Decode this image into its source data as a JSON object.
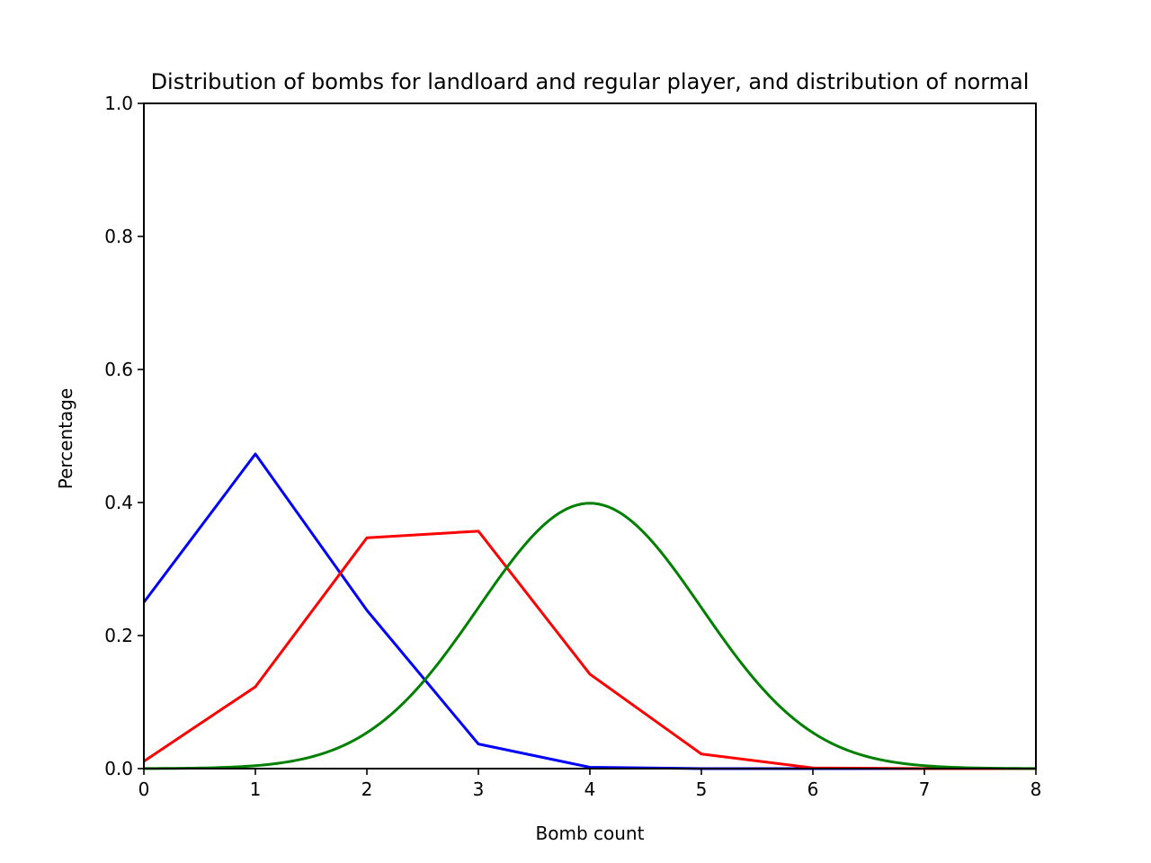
{
  "chart_data": {
    "type": "line",
    "title": "Distribution of bombs for landloard and regular player, and distribution of normal",
    "xlabel": "Bomb count",
    "ylabel": "Percentage",
    "xlim": [
      0,
      8
    ],
    "ylim": [
      0,
      1.0
    ],
    "x_ticks": [
      "0",
      "1",
      "2",
      "3",
      "4",
      "5",
      "6",
      "7",
      "8"
    ],
    "y_ticks": [
      "0.0",
      "0.2",
      "0.4",
      "0.6",
      "0.8",
      "1.0"
    ],
    "grid": false,
    "series": [
      {
        "color": "#0000ff",
        "x": [
          0,
          1,
          2,
          3,
          4,
          5,
          6,
          7,
          8
        ],
        "values": [
          0.25,
          0.473,
          0.238,
          0.037,
          0.002,
          0.0,
          0.0,
          0.0,
          0.0
        ]
      },
      {
        "color": "#ff0000",
        "x": [
          0,
          1,
          2,
          3,
          4,
          5,
          6,
          7,
          8
        ],
        "values": [
          0.011,
          0.123,
          0.347,
          0.357,
          0.142,
          0.022,
          0.001,
          0.0,
          0.0
        ]
      },
      {
        "color": "#008000",
        "kind": "normal-curve",
        "mean": 4,
        "std": 1,
        "x": [
          0,
          0.5,
          1,
          1.5,
          2,
          2.5,
          3,
          3.5,
          4,
          4.5,
          5,
          5.5,
          6,
          6.5,
          7,
          7.5,
          8
        ],
        "values": [
          0.0001,
          0.0009,
          0.0044,
          0.0175,
          0.054,
          0.1295,
          0.242,
          0.3521,
          0.3989,
          0.3521,
          0.242,
          0.1295,
          0.054,
          0.0175,
          0.0044,
          0.0009,
          0.0001
        ]
      }
    ]
  }
}
